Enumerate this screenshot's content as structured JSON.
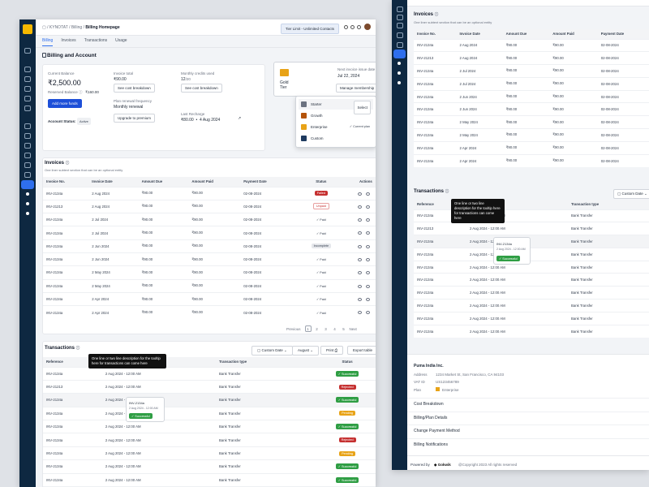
{
  "header": {
    "crumb_root": "KYNOTAT",
    "crumb_mid": "Billing",
    "crumb_current": "Billing Homepage",
    "plan_badge": "Tier Limit - Unlimited Contacts"
  },
  "tabs": [
    "Billing",
    "Invoices",
    "Transactions",
    "Usage"
  ],
  "billing": {
    "title": "Billing and Account",
    "current_balance_label": "Current Balance",
    "current_balance": "₹2,500.00",
    "reserved_label": "Reserved Balance",
    "reserved_value": "₹160.00",
    "add_funds": "Add more funds",
    "account_status_label": "Account Status:",
    "account_status": "Active",
    "invoice_total_label": "Invoice total",
    "invoice_total": "₹90.00",
    "cost_breakdown": "See cost breakdown",
    "monthly_credits_label": "Monthly credits used",
    "monthly_credits": "12",
    "monthly_credits_of": "/20",
    "plan_freq_label": "Plan renewal frequency",
    "plan_freq": "Monthly renewal",
    "upgrade": "Upgrade to premium",
    "last_recharge_label": "Last Recharge",
    "last_recharge_amount": "₹80.00",
    "last_recharge_date": "4 Aug 2024",
    "tier_name": "Gold",
    "tier_suffix": "Tier",
    "next_invoice_label": "Next invoice issue date",
    "next_invoice_date": "Jul 22, 2024",
    "manage_membership": "Manage membership",
    "menu": [
      {
        "label": "Starter",
        "extra": "Select",
        "color": "#6b7280"
      },
      {
        "label": "Growth",
        "extra": "",
        "color": "#b45309"
      },
      {
        "label": "Enterprise",
        "extra": "Current plan",
        "color": "#e8a317"
      },
      {
        "label": "Custom",
        "extra": "",
        "color": "#1e3a5f"
      }
    ]
  },
  "invoices": {
    "title": "Invoices",
    "subtitle": "One liner subtext section that can be an optional entity",
    "columns": [
      "Invoice No.",
      "Invoice Date",
      "Amount Due",
      "Amount Paid",
      "Payment Date",
      "Status",
      "Actions"
    ],
    "rows": [
      [
        "INV-2134a",
        "2 Aug 2024",
        "₹90.00",
        "₹90.00",
        "02-08-2024",
        "Failed"
      ],
      [
        "INV-21213",
        "2 Aug 2024",
        "₹90.00",
        "₹90.00",
        "02-08-2024",
        "Unpaid"
      ],
      [
        "INV-2134a",
        "2 Jul 2024",
        "₹90.00",
        "₹90.00",
        "02-08-2024",
        "Paid"
      ],
      [
        "INV-2134a",
        "2 Jul 2024",
        "₹90.00",
        "₹90.00",
        "02-08-2024",
        "Paid"
      ],
      [
        "INV-2134a",
        "2 Jun 2024",
        "₹90.00",
        "₹90.00",
        "02-08-2024",
        "Incomplete"
      ],
      [
        "INV-2134a",
        "2 Jun 2024",
        "₹90.00",
        "₹90.00",
        "02-08-2024",
        "Paid"
      ],
      [
        "INV-2134a",
        "2 May 2024",
        "₹90.00",
        "₹90.00",
        "02-08-2024",
        "Paid"
      ],
      [
        "INV-2134a",
        "2 May 2024",
        "₹90.00",
        "₹90.00",
        "02-08-2024",
        "Paid"
      ],
      [
        "INV-2134a",
        "2 Apr 2024",
        "₹90.00",
        "₹90.00",
        "02-08-2024",
        "Paid"
      ],
      [
        "INV-2134a",
        "2 Apr 2024",
        "₹90.00",
        "₹90.00",
        "02-08-2024",
        "Paid"
      ]
    ],
    "pagination": {
      "previous": "Previous",
      "pages": [
        "1",
        "2",
        "3",
        "4",
        "5"
      ],
      "next": "Next"
    }
  },
  "transactions": {
    "title": "Transactions",
    "tooltip": "One line or two line description for the tooltip here for transactions can come here",
    "filter_date": "Custom Date",
    "filter_month": "August",
    "print": "Print",
    "export": "Export table",
    "columns": [
      "Reference",
      "Date",
      "Transaction type",
      "Status"
    ],
    "row_tooltip_ref": "INV-2134a",
    "row_tooltip_date": "2 Aug 2024 - 12:00 AM",
    "row_tooltip_status": "Successful",
    "rows": [
      [
        "INV-2134a",
        "2 Aug 2024 - 12:00 AM",
        "Bank Transfer",
        "Successful"
      ],
      [
        "INV-21213",
        "2 Aug 2024 - 12:00 AM",
        "Bank Transfer",
        "Rejected"
      ],
      [
        "INV-2134a",
        "2 Aug 2024 - 12:00 AM",
        "Bank Transfer",
        "Successful"
      ],
      [
        "INV-2134a",
        "2 Aug 2024 - 12:00 AM",
        "Bank Transfer",
        "Pending"
      ],
      [
        "INV-2134a",
        "2 Aug 2024 - 12:00 AM",
        "Bank Transfer",
        "Successful"
      ],
      [
        "INV-2134a",
        "2 Aug 2024 - 12:00 AM",
        "Bank Transfer",
        "Rejected"
      ],
      [
        "INV-2134a",
        "2 Aug 2024 - 12:00 AM",
        "Bank Transfer",
        "Pending"
      ],
      [
        "INV-2134a",
        "2 Aug 2024 - 12:00 AM",
        "Bank Transfer",
        "Successful"
      ],
      [
        "INV-2134a",
        "2 Aug 2024 - 12:00 AM",
        "Bank Transfer",
        "Successful"
      ],
      [
        "INV-2134a",
        "2 Aug 2024 - 12:00 AM",
        "Bank Transfer",
        "Successful"
      ]
    ]
  },
  "right": {
    "invoice_rows": [
      [
        "INV-2134a",
        "2 Aug 2024",
        "₹90.00",
        "₹90.00",
        "02-08-2024"
      ],
      [
        "INV-21213",
        "2 Aug 2024",
        "₹90.00",
        "₹90.00",
        "02-08-2024"
      ],
      [
        "INV-2134a",
        "2 Jul 2024",
        "₹90.00",
        "₹90.00",
        "02-08-2024"
      ],
      [
        "INV-2134a",
        "2 Jul 2024",
        "₹90.00",
        "₹90.00",
        "02-08-2024"
      ],
      [
        "INV-2134a",
        "2 Jun 2024",
        "₹90.00",
        "₹90.00",
        "02-08-2024"
      ],
      [
        "INV-2134a",
        "2 Jun 2024",
        "₹90.00",
        "₹90.00",
        "02-08-2024"
      ],
      [
        "INV-2134a",
        "2 May 2024",
        "₹90.00",
        "₹90.00",
        "02-08-2024"
      ],
      [
        "INV-2134a",
        "2 May 2024",
        "₹90.00",
        "₹90.00",
        "02-08-2024"
      ],
      [
        "INV-2134a",
        "2 Apr 2024",
        "₹90.00",
        "₹90.00",
        "02-08-2024"
      ],
      [
        "INV-2134a",
        "2 Apr 2024",
        "₹90.00",
        "₹90.00",
        "02-08-2024"
      ]
    ],
    "company": "Puma India Inc.",
    "address_label": "Address",
    "address": "1234 Market St, San Francisco, CA 94103",
    "vat_label": "VAT ID",
    "vat": "US123456789",
    "plan_label": "Plan",
    "plan": "Enterprise",
    "sections": [
      "Cost Breakdown",
      "Billing/Plan Details",
      "Change Payment Method",
      "Billing Notifications"
    ],
    "powered_by": "Powered by",
    "brand": "Gokwik",
    "copyright": "@Copyright 2023 All rights reserved"
  }
}
